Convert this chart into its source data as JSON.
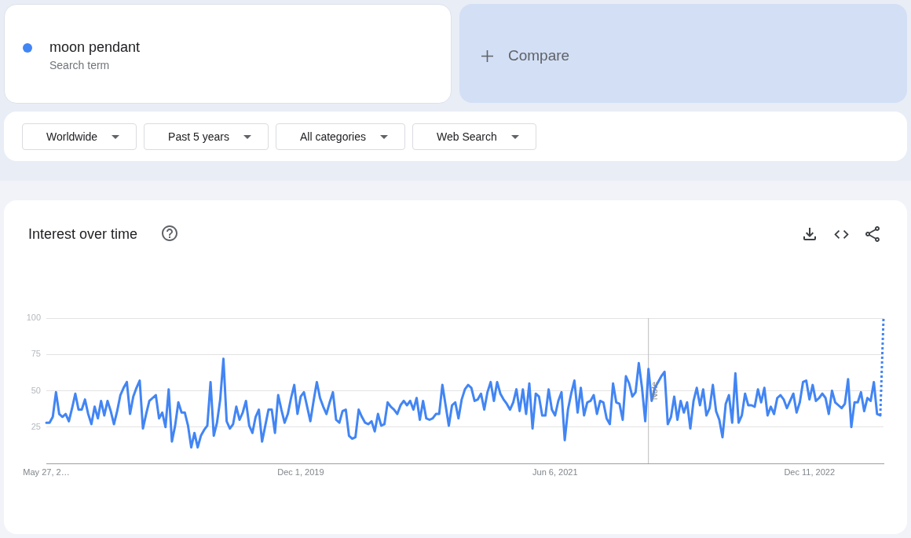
{
  "chart_data": {
    "type": "line",
    "title": "Interest over time",
    "annotations": [
      "Search term",
      "Compare",
      "Worldwide",
      "Past 5 years",
      "All categories",
      "Web Search"
    ],
    "xlim": [
      "2018-05-27",
      "2023-05-21"
    ],
    "xticks": [
      {
        "value": "2018-05-27",
        "label": "May 27, 2…"
      },
      {
        "value": "2019-12-01",
        "label": "Dec 1, 2019"
      },
      {
        "value": "2021-06-06",
        "label": "Jun 6, 2021"
      },
      {
        "value": "2022-12-11",
        "label": "Dec 11, 2022"
      }
    ],
    "ylim": [
      0,
      100
    ],
    "yticks": [
      25,
      50,
      75,
      100
    ],
    "grid": "y",
    "legend": "top left",
    "ref_lines": [
      {
        "axis": "x",
        "value": "2021-12-26",
        "label": "Note",
        "color": "#bdbdbd"
      }
    ],
    "series": [
      {
        "name": "moon pendant",
        "color": "#4285f4",
        "line_style": "solid",
        "x": [
          "2018-05-27",
          "2018-06-03",
          "2018-06-10",
          "2018-06-17",
          "2018-06-24",
          "2018-07-01",
          "2018-07-08",
          "2018-07-15",
          "2018-07-22",
          "2018-07-29",
          "2018-08-05",
          "2018-08-12",
          "2018-08-19",
          "2018-08-26",
          "2018-09-02",
          "2018-09-09",
          "2018-09-16",
          "2018-09-23",
          "2018-09-30",
          "2018-10-07",
          "2018-10-14",
          "2018-10-21",
          "2018-10-28",
          "2018-11-04",
          "2018-11-11",
          "2018-11-18",
          "2018-11-25",
          "2018-12-02",
          "2018-12-09",
          "2018-12-16",
          "2018-12-23",
          "2018-12-30",
          "2019-01-06",
          "2019-01-13",
          "2019-01-20",
          "2019-01-27",
          "2019-02-03",
          "2019-02-10",
          "2019-02-17",
          "2019-02-24",
          "2019-03-03",
          "2019-03-10",
          "2019-03-17",
          "2019-03-24",
          "2019-03-31",
          "2019-04-07",
          "2019-04-14",
          "2019-04-21",
          "2019-04-28",
          "2019-05-05",
          "2019-05-12",
          "2019-05-19",
          "2019-05-26",
          "2019-06-02",
          "2019-06-09",
          "2019-06-16",
          "2019-06-23",
          "2019-06-30",
          "2019-07-07",
          "2019-07-14",
          "2019-07-21",
          "2019-07-28",
          "2019-08-04",
          "2019-08-11",
          "2019-08-18",
          "2019-08-25",
          "2019-09-01",
          "2019-09-08",
          "2019-09-15",
          "2019-09-22",
          "2019-09-29",
          "2019-10-06",
          "2019-10-13",
          "2019-10-20",
          "2019-10-27",
          "2019-11-03",
          "2019-11-10",
          "2019-11-17",
          "2019-11-24",
          "2019-12-01",
          "2019-12-08",
          "2019-12-15",
          "2019-12-22",
          "2019-12-29",
          "2020-01-05",
          "2020-01-12",
          "2020-01-19",
          "2020-01-26",
          "2020-02-02",
          "2020-02-09",
          "2020-02-16",
          "2020-02-23",
          "2020-03-01",
          "2020-03-08",
          "2020-03-15",
          "2020-03-22",
          "2020-03-29",
          "2020-04-05",
          "2020-04-12",
          "2020-04-19",
          "2020-04-26",
          "2020-05-03",
          "2020-05-10",
          "2020-05-17",
          "2020-05-24",
          "2020-05-31",
          "2020-06-07",
          "2020-06-14",
          "2020-06-21",
          "2020-06-28",
          "2020-07-05",
          "2020-07-12",
          "2020-07-19",
          "2020-07-26",
          "2020-08-02",
          "2020-08-09",
          "2020-08-16",
          "2020-08-23",
          "2020-08-30",
          "2020-09-06",
          "2020-09-13",
          "2020-09-20",
          "2020-09-27",
          "2020-10-04",
          "2020-10-11",
          "2020-10-18",
          "2020-10-25",
          "2020-11-01",
          "2020-11-08",
          "2020-11-15",
          "2020-11-22",
          "2020-11-29",
          "2020-12-06",
          "2020-12-13",
          "2020-12-20",
          "2020-12-27",
          "2021-01-03",
          "2021-01-10",
          "2021-01-17",
          "2021-01-24",
          "2021-01-31",
          "2021-02-07",
          "2021-02-14",
          "2021-02-21",
          "2021-02-28",
          "2021-03-07",
          "2021-03-14",
          "2021-03-21",
          "2021-03-28",
          "2021-04-04",
          "2021-04-11",
          "2021-04-18",
          "2021-04-25",
          "2021-05-02",
          "2021-05-09",
          "2021-05-16",
          "2021-05-23",
          "2021-05-30",
          "2021-06-06",
          "2021-06-13",
          "2021-06-20",
          "2021-06-27",
          "2021-07-04",
          "2021-07-11",
          "2021-07-18",
          "2021-07-25",
          "2021-08-01",
          "2021-08-08",
          "2021-08-15",
          "2021-08-22",
          "2021-08-29",
          "2021-09-05",
          "2021-09-12",
          "2021-09-19",
          "2021-09-26",
          "2021-10-03",
          "2021-10-10",
          "2021-10-17",
          "2021-10-24",
          "2021-10-31",
          "2021-11-07",
          "2021-11-14",
          "2021-11-21",
          "2021-11-28",
          "2021-12-05",
          "2021-12-12",
          "2021-12-19",
          "2021-12-26",
          "2022-01-02",
          "2022-01-09",
          "2022-01-16",
          "2022-01-23",
          "2022-01-30",
          "2022-02-06",
          "2022-02-13",
          "2022-02-20",
          "2022-02-27",
          "2022-03-06",
          "2022-03-13",
          "2022-03-20",
          "2022-03-27",
          "2022-04-03",
          "2022-04-10",
          "2022-04-17",
          "2022-04-24",
          "2022-05-01",
          "2022-05-08",
          "2022-05-15",
          "2022-05-22",
          "2022-05-29",
          "2022-06-05",
          "2022-06-12",
          "2022-06-19",
          "2022-06-26",
          "2022-07-03",
          "2022-07-10",
          "2022-07-17",
          "2022-07-24",
          "2022-07-31",
          "2022-08-07",
          "2022-08-14",
          "2022-08-21",
          "2022-08-28",
          "2022-09-04",
          "2022-09-11",
          "2022-09-18",
          "2022-09-25",
          "2022-10-02",
          "2022-10-09",
          "2022-10-16",
          "2022-10-23",
          "2022-10-30",
          "2022-11-06",
          "2022-11-13",
          "2022-11-20",
          "2022-11-27",
          "2022-12-04",
          "2022-12-11",
          "2022-12-18",
          "2022-12-25",
          "2023-01-01",
          "2023-01-08",
          "2023-01-15",
          "2023-01-22",
          "2023-01-29",
          "2023-02-05",
          "2023-02-12",
          "2023-02-19",
          "2023-02-26",
          "2023-03-05",
          "2023-03-12",
          "2023-03-19",
          "2023-03-26",
          "2023-04-02",
          "2023-04-09",
          "2023-04-16",
          "2023-04-23",
          "2023-04-30",
          "2023-05-07",
          "2023-05-14"
        ],
        "values": [
          28,
          28,
          32,
          49,
          34,
          32,
          34,
          29,
          38,
          48,
          37,
          37,
          44,
          34,
          27,
          39,
          31,
          43,
          33,
          43,
          36,
          27,
          36,
          47,
          52,
          56,
          34,
          46,
          52,
          57,
          24,
          34,
          43,
          45,
          47,
          31,
          35,
          25,
          51,
          15,
          26,
          42,
          35,
          35,
          26,
          11,
          21,
          11,
          19,
          23,
          26,
          56,
          19,
          28,
          44,
          72,
          29,
          24,
          27,
          39,
          30,
          35,
          43,
          26,
          21,
          32,
          37,
          15,
          26,
          37,
          37,
          21,
          47,
          37,
          28,
          34,
          45,
          54,
          34,
          46,
          49,
          39,
          29,
          43,
          56,
          45,
          39,
          34,
          42,
          49,
          30,
          28,
          36,
          37,
          19,
          17,
          18,
          37,
          32,
          28,
          27,
          29,
          22,
          34,
          26,
          27,
          42,
          39,
          37,
          34,
          40,
          43,
          40,
          43,
          37,
          45,
          30,
          43,
          31,
          30,
          31,
          34,
          34,
          54,
          40,
          26,
          40,
          42,
          31,
          44,
          51,
          54,
          52,
          43,
          44,
          48,
          37,
          49,
          56,
          43,
          56,
          48,
          44,
          41,
          37,
          42,
          51,
          36,
          51,
          34,
          55,
          24,
          48,
          46,
          33,
          33,
          51,
          37,
          33,
          43,
          49,
          16,
          37,
          48,
          57,
          35,
          52,
          33,
          42,
          43,
          47,
          34,
          43,
          42,
          31,
          27,
          55,
          42,
          41,
          30,
          60,
          55,
          46,
          49,
          69,
          52,
          29,
          65,
          43,
          52,
          56,
          60,
          63,
          27,
          32,
          46,
          30,
          43,
          35,
          42,
          24,
          43,
          52,
          40,
          51,
          33,
          38,
          54,
          36,
          30,
          18,
          41,
          47,
          28,
          62,
          28,
          33,
          48,
          40,
          40,
          39,
          51,
          42,
          52,
          33,
          39,
          34,
          45,
          47,
          44,
          38,
          43,
          48,
          35,
          42,
          56,
          57,
          44,
          54,
          43,
          45,
          48,
          45,
          34,
          50,
          42,
          40,
          38,
          41,
          58,
          25,
          42,
          42,
          49,
          36,
          45,
          43,
          56,
          34,
          33
        ]
      },
      {
        "color": "#4285f4",
        "line_style": "dotted",
        "x": [
          "2023-05-14",
          "2023-05-21"
        ],
        "values": [
          33,
          100
        ]
      }
    ]
  }
}
